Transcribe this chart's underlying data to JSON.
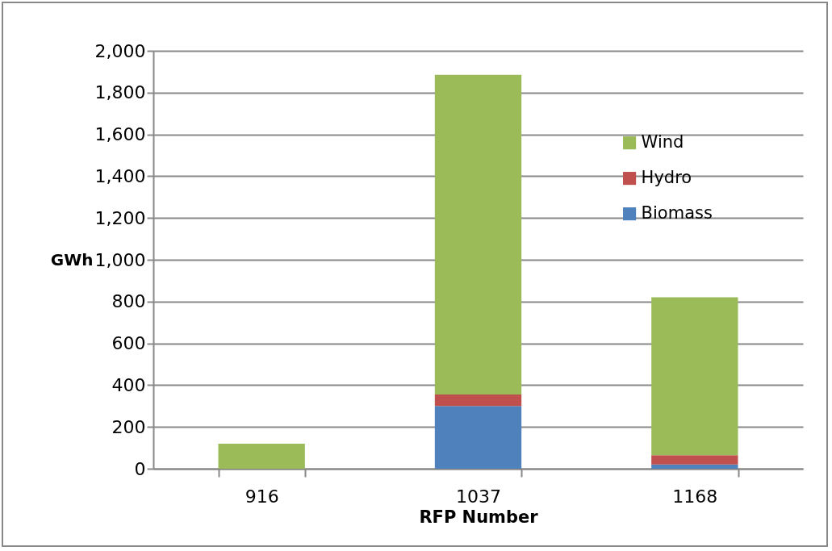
{
  "chart_data": {
    "type": "bar",
    "stacked": true,
    "xlabel": "RFP Number",
    "ylabel": "GWh",
    "categories": [
      "916",
      "1037",
      "1168"
    ],
    "series": [
      {
        "name": "Biomass",
        "color": "#4f81bd",
        "values": [
          0,
          300,
          20
        ]
      },
      {
        "name": "Hydro",
        "color": "#c0504d",
        "values": [
          0,
          55,
          45
        ]
      },
      {
        "name": "Wind",
        "color": "#9bbb59",
        "values": [
          120,
          1530,
          755
        ]
      }
    ],
    "ylim": [
      0,
      2000
    ],
    "yticks": [
      0,
      200,
      400,
      600,
      800,
      {
        "value": 1000,
        "label": "1,000"
      },
      {
        "value": 1200,
        "label": "1,200"
      },
      {
        "value": 1400,
        "label": "1,400"
      },
      {
        "value": 1600,
        "label": "1,600"
      },
      {
        "value": 1800,
        "label": "1,800"
      },
      {
        "value": 2000,
        "label": "2,000"
      }
    ],
    "grid": "y",
    "legend": "right"
  }
}
